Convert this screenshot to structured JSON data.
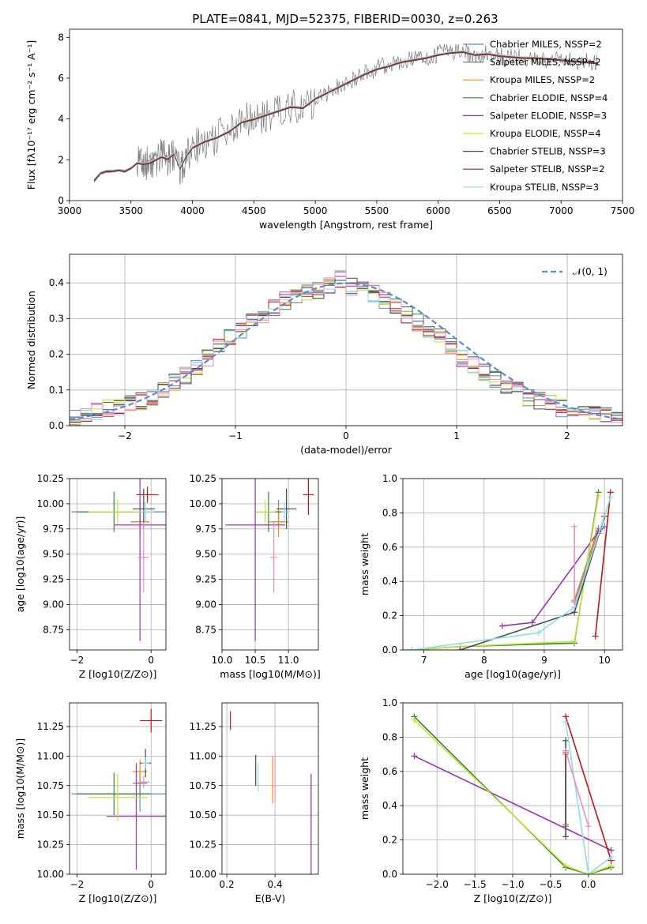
{
  "figure_title": "PLATE=0841, MJD=52375, FIBERID=0030, z=0.263",
  "colors": [
    "#5b8bd4",
    "#7c7c7c",
    "#f08a24",
    "#2e8a2e",
    "#9b2fb3",
    "#c7e23a",
    "#4a4a4a",
    "#c01515",
    "#8fdde8",
    "#f08cc0"
  ],
  "chart_data": [
    {
      "type": "line",
      "id": "spectrum",
      "xlabel": "wavelength [Angstrom, rest frame]",
      "ylabel": "Flux [fλ10⁻¹⁷ erg cm⁻² s⁻¹ A⁻¹]",
      "xlim": [
        3000,
        7500
      ],
      "ylim": [
        0,
        8.4
      ],
      "xticks": [
        "3000",
        "3500",
        "4000",
        "4500",
        "5000",
        "5500",
        "6000",
        "6500",
        "7000",
        "7500"
      ],
      "yticks": [
        "0",
        "2",
        "4",
        "6",
        "8"
      ],
      "legend_position": "upper-right",
      "legend": [
        "Chabrier MILES, NSSP=2",
        "Salpeter MILES, NSSP=2",
        "Kroupa MILES, NSSP=2",
        "Chabrier ELODIE, NSSP=4",
        "Salpeter ELODIE, NSSP=3",
        "Kroupa ELODIE, NSSP=4",
        "Chabrier STELIB, NSSP=3",
        "Salpeter STELIB, NSSP=2",
        "Kroupa STELIB, NSSP=3"
      ],
      "legend_colors": [
        "#5b8bd4",
        "#7c7c7c",
        "#f08a24",
        "#2e8a2e",
        "#9b2fb3",
        "#c7e23a",
        "#4a4a4a",
        "#c01515",
        "#8fdde8"
      ],
      "data_series": {
        "name": "data",
        "x": [
          3200,
          3250,
          3300,
          3350,
          3400,
          3450,
          3500,
          3550,
          3600,
          3650,
          3700,
          3750,
          3800,
          3850,
          3900,
          3950,
          4000,
          4100,
          4200,
          4300,
          4400,
          4500,
          4600,
          4700,
          4800,
          4900,
          5000,
          5100,
          5200,
          5300,
          5400,
          5500,
          5600,
          5700,
          5800,
          5900,
          6000,
          6100,
          6200,
          6300,
          6400,
          6500,
          6600,
          6700,
          6800,
          6900,
          7000,
          7100,
          7200,
          7300
        ],
        "y": [
          0.9,
          1.3,
          1.4,
          1.4,
          1.5,
          1.4,
          1.6,
          1.9,
          1.8,
          1.8,
          2.0,
          2.2,
          2.0,
          2.3,
          1.5,
          2.2,
          2.6,
          2.9,
          3.1,
          3.4,
          3.9,
          4.0,
          4.2,
          4.4,
          4.6,
          4.5,
          5.0,
          5.3,
          5.6,
          5.9,
          6.2,
          6.5,
          6.6,
          6.8,
          6.9,
          7.0,
          7.2,
          7.3,
          7.3,
          7.1,
          7.2,
          7.1,
          7.0,
          7.0,
          7.0,
          6.9,
          6.9,
          6.8,
          6.8,
          6.7
        ]
      },
      "model_y": [
        1.0,
        1.35,
        1.45,
        1.45,
        1.5,
        1.45,
        1.6,
        1.85,
        1.8,
        1.85,
        2.0,
        2.15,
        2.05,
        2.3,
        1.6,
        2.2,
        2.6,
        2.9,
        3.1,
        3.4,
        3.85,
        4.0,
        4.2,
        4.4,
        4.6,
        4.55,
        5.0,
        5.3,
        5.6,
        5.9,
        6.2,
        6.45,
        6.6,
        6.8,
        6.9,
        7.0,
        7.15,
        7.25,
        7.3,
        7.15,
        7.2,
        7.1,
        7.05,
        7.0,
        7.0,
        6.95,
        6.9,
        6.85,
        6.8,
        6.75
      ]
    },
    {
      "type": "bar",
      "id": "residuals",
      "xlabel": "(data-model)/error",
      "ylabel": "Normed distribution",
      "xlim": [
        -2.5,
        2.5
      ],
      "ylim": [
        0,
        0.48
      ],
      "xticks": [
        "−2",
        "−1",
        "0",
        "1",
        "2"
      ],
      "yticks": [
        "0.0",
        "0.1",
        "0.2",
        "0.3",
        "0.4"
      ],
      "legend": [
        "𝒩(0, 1)"
      ],
      "legend_position": "upper-right",
      "normal_curve": {
        "mean": 0,
        "sigma": 1
      },
      "bin_width": 0.1,
      "histogram_centers": [
        -2.45,
        -2.35,
        -2.25,
        -2.15,
        -2.05,
        -1.95,
        -1.85,
        -1.75,
        -1.65,
        -1.55,
        -1.45,
        -1.35,
        -1.25,
        -1.15,
        -1.05,
        -0.95,
        -0.85,
        -0.75,
        -0.65,
        -0.55,
        -0.45,
        -0.35,
        -0.25,
        -0.15,
        -0.05,
        0.05,
        0.15,
        0.25,
        0.35,
        0.45,
        0.55,
        0.65,
        0.75,
        0.85,
        0.95,
        1.05,
        1.15,
        1.25,
        1.35,
        1.45,
        1.55,
        1.65,
        1.75,
        1.85,
        1.95,
        2.05,
        2.15,
        2.25,
        2.35,
        2.45
      ],
      "histogram_values": [
        0.02,
        0.03,
        0.04,
        0.05,
        0.05,
        0.06,
        0.07,
        0.08,
        0.1,
        0.12,
        0.14,
        0.16,
        0.19,
        0.22,
        0.25,
        0.27,
        0.29,
        0.31,
        0.33,
        0.35,
        0.36,
        0.37,
        0.38,
        0.39,
        0.41,
        0.39,
        0.38,
        0.37,
        0.35,
        0.33,
        0.31,
        0.29,
        0.27,
        0.25,
        0.22,
        0.19,
        0.17,
        0.15,
        0.13,
        0.11,
        0.1,
        0.08,
        0.07,
        0.06,
        0.05,
        0.04,
        0.04,
        0.03,
        0.03,
        0.02
      ]
    },
    {
      "type": "scatter",
      "id": "age-vs-Z",
      "xlabel": "Z [log10(Z/Z⊙)]",
      "ylabel": "age  [log10(age/yr)]",
      "xlim": [
        -2.2,
        0.4
      ],
      "ylim": [
        8.55,
        10.25
      ],
      "xticks": [
        "−2",
        "0"
      ],
      "yticks": [
        "8.75",
        "9.00",
        "9.25",
        "9.50",
        "9.75",
        "10.00",
        "10.25"
      ],
      "points": [
        {
          "x": -0.3,
          "y": 9.92,
          "xerr": 1.85,
          "yerr": 0.12,
          "color": "#5b8bd4"
        },
        {
          "x": -0.3,
          "y": 9.82,
          "xerr": 0.25,
          "yerr": 0.1,
          "color": "#7c7c7c"
        },
        {
          "x": -0.3,
          "y": 9.82,
          "xerr": 0.2,
          "yerr": 0.15,
          "color": "#f08a24"
        },
        {
          "x": -1.0,
          "y": 9.92,
          "xerr": 1.0,
          "yerr": 0.2,
          "color": "#2e8a2e"
        },
        {
          "x": -0.3,
          "y": 9.79,
          "xerr": 0.7,
          "yerr": 1.15,
          "color": "#9b2fb3"
        },
        {
          "x": -0.9,
          "y": 9.92,
          "xerr": 0.8,
          "yerr": 0.12,
          "color": "#c7e23a"
        },
        {
          "x": -0.2,
          "y": 9.95,
          "xerr": 0.3,
          "yerr": 0.2,
          "color": "#4a4a4a"
        },
        {
          "x": -0.1,
          "y": 10.09,
          "xerr": 0.3,
          "yerr": 0.08,
          "color": "#c01515"
        },
        {
          "x": -0.15,
          "y": 9.92,
          "xerr": 0.2,
          "yerr": 0.1,
          "color": "#8fdde8"
        },
        {
          "x": -0.2,
          "y": 9.47,
          "xerr": 0.15,
          "yerr": 0.35,
          "color": "#f08cc0"
        }
      ]
    },
    {
      "type": "scatter",
      "id": "age-vs-mass",
      "xlabel": "mass [log10(M/M⊙)]",
      "ylabel": "",
      "xlim": [
        10.0,
        11.45
      ],
      "ylim": [
        8.55,
        10.25
      ],
      "xticks": [
        "10.0",
        "10.5",
        "11.0"
      ],
      "yticks": [
        "8.75",
        "9.00",
        "9.25",
        "9.50",
        "9.75",
        "10.00",
        "10.25"
      ],
      "points": [
        {
          "x": 10.85,
          "y": 9.92,
          "xerr": 0.15,
          "yerr": 0.12,
          "color": "#5b8bd4"
        },
        {
          "x": 10.85,
          "y": 9.82,
          "xerr": 0.1,
          "yerr": 0.1,
          "color": "#7c7c7c"
        },
        {
          "x": 10.85,
          "y": 9.82,
          "xerr": 0.15,
          "yerr": 0.15,
          "color": "#f08a24"
        },
        {
          "x": 10.7,
          "y": 9.92,
          "xerr": 0.2,
          "yerr": 0.2,
          "color": "#2e8a2e"
        },
        {
          "x": 10.5,
          "y": 9.79,
          "xerr": 0.45,
          "yerr": 1.15,
          "color": "#9b2fb3"
        },
        {
          "x": 10.65,
          "y": 9.92,
          "xerr": 0.15,
          "yerr": 0.12,
          "color": "#c7e23a"
        },
        {
          "x": 10.97,
          "y": 9.95,
          "xerr": 0.15,
          "yerr": 0.2,
          "color": "#4a4a4a"
        },
        {
          "x": 11.3,
          "y": 10.09,
          "xerr": 0.08,
          "yerr": 0.2,
          "color": "#c01515"
        },
        {
          "x": 10.94,
          "y": 9.92,
          "xerr": 0.05,
          "yerr": 0.1,
          "color": "#8fdde8"
        },
        {
          "x": 10.78,
          "y": 9.47,
          "xerr": 0.05,
          "yerr": 0.35,
          "color": "#f08cc0"
        }
      ]
    },
    {
      "type": "line",
      "id": "mass-weight-vs-age",
      "xlabel": "age  [log10(age/yr)]",
      "ylabel": "mass weight",
      "xlim": [
        6.65,
        10.3
      ],
      "ylim": [
        0,
        1.0
      ],
      "xticks": [
        "7",
        "8",
        "9",
        "10"
      ],
      "yticks": [
        "0.0",
        "0.2",
        "0.4",
        "0.6",
        "0.8",
        "1.0"
      ],
      "series": [
        {
          "x": [
            9.5,
            9.9,
            10.0
          ],
          "y": [
            0.28,
            0.68,
            0.72
          ],
          "color": "#5b8bd4"
        },
        {
          "x": [
            9.5,
            9.9
          ],
          "y": [
            0.29,
            0.71
          ],
          "color": "#7c7c7c"
        },
        {
          "x": [
            9.5,
            9.9
          ],
          "y": [
            0.29,
            0.7
          ],
          "color": "#f08a24"
        },
        {
          "x": [
            6.8,
            7.6,
            9.5,
            9.9
          ],
          "y": [
            0.0,
            0.02,
            0.04,
            0.92
          ],
          "color": "#2e8a2e"
        },
        {
          "x": [
            8.3,
            8.8,
            9.9
          ],
          "y": [
            0.14,
            0.16,
            0.69
          ],
          "color": "#9b2fb3"
        },
        {
          "x": [
            6.8,
            7.6,
            9.5,
            9.9
          ],
          "y": [
            0.0,
            0.02,
            0.05,
            0.9
          ],
          "color": "#c7e23a"
        },
        {
          "x": [
            7.6,
            9.5,
            10.0
          ],
          "y": [
            0.0,
            0.22,
            0.78
          ],
          "color": "#4a4a4a"
        },
        {
          "x": [
            9.85,
            10.1
          ],
          "y": [
            0.08,
            0.92
          ],
          "color": "#c01515"
        },
        {
          "x": [
            6.8,
            8.9,
            9.5,
            10.1
          ],
          "y": [
            0.0,
            0.1,
            0.25,
            0.89
          ],
          "color": "#8fdde8"
        },
        {
          "x": [
            9.5,
            9.5
          ],
          "y": [
            0.28,
            0.72
          ],
          "color": "#f08cc0"
        }
      ]
    },
    {
      "type": "scatter",
      "id": "mass-vs-Z",
      "xlabel": "Z [log10(Z/Z⊙)]",
      "ylabel": "mass [log10(M/M⊙)]",
      "xlim": [
        -2.2,
        0.4
      ],
      "ylim": [
        10.0,
        11.45
      ],
      "xticks": [
        "−2",
        "0"
      ],
      "yticks": [
        "10.00",
        "10.25",
        "10.50",
        "10.75",
        "11.00",
        "11.25"
      ],
      "points": [
        {
          "x": -0.3,
          "y": 10.68,
          "xerr": 1.85,
          "yerr": 0.15,
          "color": "#5b8bd4"
        },
        {
          "x": -0.3,
          "y": 10.77,
          "xerr": 0.2,
          "yerr": 0.1,
          "color": "#7c7c7c"
        },
        {
          "x": -0.3,
          "y": 10.87,
          "xerr": 0.2,
          "yerr": 0.1,
          "color": "#f08a24"
        },
        {
          "x": -1.0,
          "y": 10.68,
          "xerr": 1.0,
          "yerr": 0.18,
          "color": "#2e8a2e"
        },
        {
          "x": -0.4,
          "y": 10.49,
          "xerr": 0.8,
          "yerr": 0.45,
          "color": "#9b2fb3"
        },
        {
          "x": -0.9,
          "y": 10.65,
          "xerr": 0.8,
          "yerr": 0.2,
          "color": "#c7e23a"
        },
        {
          "x": -0.15,
          "y": 10.94,
          "xerr": 0.15,
          "yerr": 0.12,
          "color": "#4a4a4a"
        },
        {
          "x": 0.0,
          "y": 11.3,
          "xerr": 0.3,
          "yerr": 0.1,
          "color": "#c01515"
        },
        {
          "x": -0.15,
          "y": 10.94,
          "xerr": 0.1,
          "yerr": 0.05,
          "color": "#8fdde8"
        },
        {
          "x": -0.2,
          "y": 10.78,
          "xerr": 0.15,
          "yerr": 0.05,
          "color": "#f08cc0"
        }
      ]
    },
    {
      "type": "scatter",
      "id": "mass-vs-ebv",
      "xlabel": "E(B-V)",
      "ylabel": "",
      "xlim": [
        0.18,
        0.58
      ],
      "ylim": [
        10.0,
        11.45
      ],
      "xticks": [
        "0.2",
        "0.4"
      ],
      "yticks": [
        "10.00",
        "10.25",
        "10.50",
        "10.75",
        "11.00",
        "11.25"
      ],
      "points": [
        {
          "x": 0.32,
          "y": 10.88,
          "xerr": 0.0,
          "yerr": 0.13,
          "color": "#4a4a4a"
        },
        {
          "x": 0.33,
          "y": 10.82,
          "xerr": 0.0,
          "yerr": 0.12,
          "color": "#8fdde8"
        },
        {
          "x": 0.39,
          "y": 10.8,
          "xerr": 0.0,
          "yerr": 0.2,
          "color": "#f08a24"
        },
        {
          "x": 0.4,
          "y": 10.81,
          "xerr": 0.0,
          "yerr": 0.2,
          "color": "#f08cc0"
        },
        {
          "x": 0.215,
          "y": 11.3,
          "xerr": 0.0,
          "yerr": 0.08,
          "color": "#c01515"
        },
        {
          "x": 0.55,
          "y": 10.6,
          "xerr": 0.0,
          "yerr": 0.23,
          "color": "#c7e23a"
        },
        {
          "x": 0.55,
          "y": 10.4,
          "xerr": 0.0,
          "yerr": 0.45,
          "color": "#9b2fb3"
        }
      ]
    },
    {
      "type": "line",
      "id": "mass-weight-vs-Z",
      "xlabel": "Z [log10(Z/Z⊙)]",
      "ylabel": "mass weight",
      "xlim": [
        -2.45,
        0.45
      ],
      "ylim": [
        0,
        1.0
      ],
      "xticks": [
        "−2.0",
        "−1.5",
        "−1.0",
        "−0.5",
        "0.0"
      ],
      "yticks": [
        "0.0",
        "0.2",
        "0.4",
        "0.6",
        "0.8",
        "1.0"
      ],
      "series": [
        {
          "x": [
            -0.3,
            -0.3
          ],
          "y": [
            0.28,
            0.72
          ],
          "color": "#5b8bd4"
        },
        {
          "x": [
            -0.3,
            -0.3
          ],
          "y": [
            0.29,
            0.71
          ],
          "color": "#7c7c7c"
        },
        {
          "x": [
            -0.3,
            -0.3
          ],
          "y": [
            0.29,
            0.7
          ],
          "color": "#f08a24"
        },
        {
          "x": [
            -2.3,
            -0.3,
            0.0,
            0.3
          ],
          "y": [
            0.92,
            0.04,
            0.0,
            0.04
          ],
          "color": "#2e8a2e"
        },
        {
          "x": [
            -2.3,
            0.3
          ],
          "y": [
            0.69,
            0.14
          ],
          "color": "#9b2fb3"
        },
        {
          "x": [
            -2.3,
            -0.3,
            0.0,
            0.3
          ],
          "y": [
            0.9,
            0.05,
            0.0,
            0.05
          ],
          "color": "#c7e23a"
        },
        {
          "x": [
            -0.3,
            -0.3
          ],
          "y": [
            0.22,
            0.78
          ],
          "color": "#4a4a4a"
        },
        {
          "x": [
            -0.3,
            0.3
          ],
          "y": [
            0.92,
            0.08
          ],
          "color": "#c01515"
        },
        {
          "x": [
            -0.3,
            0.0,
            0.3
          ],
          "y": [
            0.89,
            0.0,
            0.1
          ],
          "color": "#8fdde8"
        },
        {
          "x": [
            -0.3,
            0.0
          ],
          "y": [
            0.72,
            0.28
          ],
          "color": "#f08cc0"
        }
      ]
    }
  ]
}
